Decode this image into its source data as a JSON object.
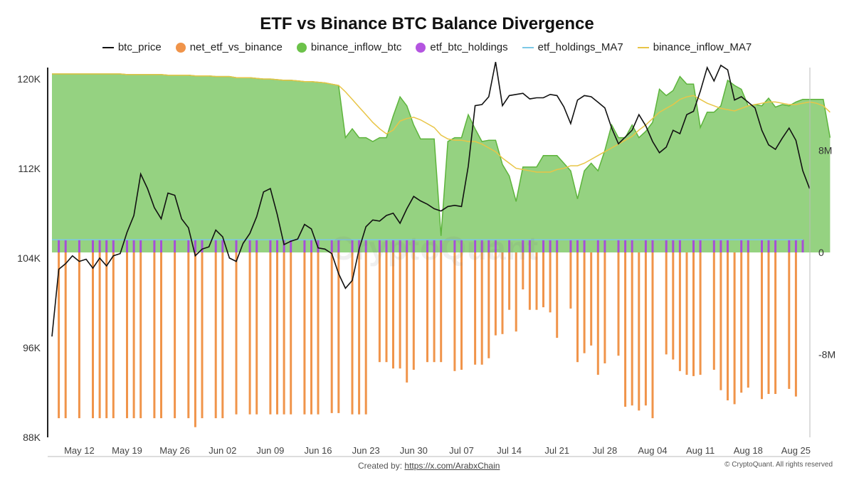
{
  "title": "ETF vs Binance BTC Balance Divergence",
  "legend": [
    {
      "label": "btc_price",
      "kind": "line",
      "color": "#111111"
    },
    {
      "label": "net_etf_vs_binance",
      "kind": "dot",
      "color": "#F0944A"
    },
    {
      "label": "binance_inflow_btc",
      "kind": "dot",
      "color": "#6CC24A"
    },
    {
      "label": "etf_btc_holdings",
      "kind": "dot",
      "color": "#B455E0"
    },
    {
      "label": "etf_holdings_MA7",
      "kind": "line",
      "color": "#7CC8E6"
    },
    {
      "label": "binance_inflow_MA7",
      "kind": "line",
      "color": "#E8C547"
    }
  ],
  "watermark": "CryptoQuant",
  "footer": {
    "created_label": "Created by:",
    "created_link": "https://x.com/ArabxChain",
    "copyright": "© CryptoQuant. All rights reserved"
  },
  "chart_data": {
    "type": "line",
    "x_start": "2025-05-08",
    "x_end": "2025-08-26",
    "xtick_labels": [
      "May 12",
      "May 19",
      "May 26",
      "Jun 02",
      "Jun 09",
      "Jun 16",
      "Jun 23",
      "Jun 30",
      "Jul 07",
      "Jul 14",
      "Jul 21",
      "Jul 28",
      "Aug 04",
      "Aug 11",
      "Aug 18",
      "Aug 25"
    ],
    "xtick_days": [
      4,
      11,
      18,
      25,
      32,
      39,
      46,
      53,
      60,
      67,
      74,
      81,
      88,
      95,
      102,
      109
    ],
    "left_axis": {
      "ticks": [
        88000,
        96000,
        104000,
        112000,
        120000
      ],
      "labels": [
        "88K",
        "96K",
        "104K",
        "112K",
        "120K"
      ],
      "range": [
        88000,
        121000
      ]
    },
    "right_axis": {
      "ticks": [
        -8000000,
        0,
        8000000
      ],
      "labels": [
        "-8M",
        "0",
        "8M"
      ],
      "range": [
        -14500000,
        14500000
      ]
    },
    "series": [
      {
        "name": "btc_price",
        "axis": "left",
        "color": "#111111",
        "values": [
          97000,
          103000,
          103500,
          104200,
          103700,
          103900,
          103100,
          104000,
          103300,
          104200,
          104400,
          106300,
          107800,
          111500,
          110200,
          108500,
          107500,
          109800,
          109600,
          107500,
          106700,
          104200,
          104800,
          105000,
          106500,
          105900,
          104000,
          103700,
          105300,
          106200,
          107700,
          109900,
          110200,
          107900,
          105200,
          105500,
          105700,
          107000,
          106600,
          104900,
          104800,
          104400,
          102600,
          101300,
          102000,
          104800,
          106800,
          107400,
          107300,
          107800,
          108000,
          107100,
          108400,
          109500,
          109100,
          108800,
          108400,
          108200,
          108600,
          108700,
          108600,
          112200,
          117600,
          117700,
          118400,
          121500,
          117600,
          118500,
          118600,
          118700,
          118200,
          118300,
          118300,
          118600,
          118500,
          117500,
          116000,
          118100,
          118500,
          118400,
          117900,
          117400,
          115600,
          114200,
          114800,
          115400,
          116800,
          115800,
          114400,
          113400,
          113900,
          115400,
          115100,
          116800,
          117100,
          118900,
          121000,
          119800,
          121200,
          120800,
          118100,
          118400,
          117900,
          117400,
          115400,
          114100,
          113700,
          114700,
          115600,
          114500,
          111800,
          110200
        ]
      },
      {
        "name": "binance_inflow_btc",
        "axis": "right",
        "color": "#6CC24A",
        "area": true,
        "values": [
          14000000,
          14000000,
          14000000,
          14000000,
          14000000,
          14000000,
          14000000,
          14000000,
          14000000,
          14000000,
          14000000,
          13950000,
          13950000,
          13950000,
          13950000,
          13950000,
          13950000,
          13900000,
          13900000,
          13900000,
          13900000,
          13850000,
          13850000,
          13850000,
          13800000,
          13800000,
          13800000,
          13700000,
          13700000,
          13700000,
          13650000,
          13600000,
          13600000,
          13550000,
          13500000,
          13500000,
          13450000,
          13400000,
          13400000,
          13350000,
          13300000,
          13200000,
          13100000,
          9000000,
          9700000,
          9000000,
          9000000,
          8700000,
          9000000,
          9000000,
          10700000,
          12200000,
          11500000,
          10000000,
          8900000,
          8900000,
          8900000,
          1300000,
          8700000,
          9000000,
          9000000,
          10800000,
          9700000,
          8700000,
          8800000,
          8800000,
          6900000,
          6000000,
          4000000,
          6700000,
          6700000,
          6700000,
          7600000,
          7600000,
          7600000,
          7000000,
          6400000,
          4200000,
          6400000,
          7000000,
          6400000,
          8000000,
          10000000,
          9000000,
          9000000,
          10000000,
          9000000,
          9500000,
          10200000,
          12800000,
          12300000,
          12700000,
          13800000,
          13200000,
          13200000,
          9800000,
          11000000,
          11000000,
          11500000,
          13500000,
          13100000,
          12800000,
          11500000,
          11600000,
          11500000,
          12100000,
          11400000,
          11600000,
          11500000,
          11800000,
          12000000,
          12000000,
          12000000,
          12000000,
          9000000
        ]
      },
      {
        "name": "etf_holdings_MA7",
        "axis": "right",
        "color": "#7CC8E6",
        "value": 1000000
      },
      {
        "name": "binance_inflow_MA7",
        "axis": "right",
        "color": "#E8C547",
        "values": [
          14000000,
          14000000,
          14000000,
          14000000,
          14000000,
          14000000,
          14000000,
          14000000,
          14000000,
          14000000,
          14000000,
          13950000,
          13950000,
          13950000,
          13950000,
          13950000,
          13950000,
          13900000,
          13900000,
          13900000,
          13900000,
          13850000,
          13850000,
          13850000,
          13800000,
          13800000,
          13800000,
          13700000,
          13700000,
          13700000,
          13650000,
          13600000,
          13600000,
          13550000,
          13500000,
          13500000,
          13450000,
          13400000,
          13400000,
          13350000,
          13300000,
          13200000,
          13100000,
          12600000,
          12000000,
          11400000,
          10800000,
          10200000,
          9700000,
          9300000,
          9600000,
          10300000,
          10500000,
          10600000,
          10400000,
          10100000,
          9800000,
          9200000,
          8900000,
          8800000,
          8800000,
          8700000,
          8700000,
          8500000,
          8200000,
          7900000,
          7400000,
          7000000,
          6600000,
          6500000,
          6400000,
          6300000,
          6300000,
          6300000,
          6500000,
          6600000,
          6800000,
          6800000,
          7000000,
          7300000,
          7600000,
          7900000,
          8200000,
          8500000,
          8800000,
          9100000,
          9600000,
          10000000,
          10500000,
          11000000,
          11300000,
          11600000,
          12000000,
          12200000,
          12300000,
          12000000,
          11700000,
          11500000,
          11300000,
          11200000,
          11100000,
          11300000,
          11500000,
          11600000,
          11700000,
          11800000,
          11800000,
          11700000,
          11600000,
          11600000,
          11700000,
          11800000,
          11700000,
          11500000,
          11000000
        ]
      },
      {
        "name": "etf_btc_holdings",
        "axis": "right",
        "color": "#B455E0",
        "days": [
          1,
          2,
          4,
          6,
          7,
          8,
          9,
          11,
          12,
          13,
          15,
          16,
          18,
          20,
          21,
          22,
          24,
          25,
          27,
          29,
          30,
          32,
          33,
          34,
          35,
          37,
          38,
          39,
          41,
          42,
          44,
          45,
          46,
          48,
          49,
          50,
          51,
          52,
          53,
          55,
          56,
          57,
          59,
          60,
          62,
          63,
          64,
          65,
          67,
          69,
          70,
          72,
          73,
          74,
          76,
          77,
          78,
          80,
          81,
          83,
          84,
          85,
          87,
          88,
          90,
          91,
          92,
          94,
          95,
          97,
          98,
          99,
          101,
          102,
          104,
          105,
          106,
          108,
          109,
          110
        ],
        "value": 1000000
      },
      {
        "name": "net_etf_vs_binance",
        "axis": "right",
        "color": "#F0944A",
        "days": [
          1,
          2,
          4,
          6,
          7,
          8,
          9,
          11,
          12,
          13,
          15,
          16,
          18,
          20,
          21,
          22,
          24,
          25,
          27,
          29,
          30,
          32,
          33,
          34,
          35,
          37,
          38,
          39,
          41,
          42,
          44,
          45,
          46,
          48,
          49,
          50,
          51,
          52,
          53,
          55,
          56,
          57,
          59,
          60,
          62,
          63,
          64,
          65,
          66,
          67,
          68,
          69,
          70,
          71,
          72,
          73,
          74,
          76,
          77,
          78,
          79,
          80,
          81,
          83,
          84,
          85,
          86,
          87,
          88,
          90,
          91,
          92,
          93,
          94,
          95,
          97,
          98,
          99,
          100,
          101,
          102,
          104,
          105,
          106,
          108,
          109
        ],
        "values": [
          -13000000,
          -13000000,
          -13000000,
          -13000000,
          -13000000,
          -13000000,
          -13000000,
          -13000000,
          -13000000,
          -13000000,
          -13000000,
          -13000000,
          -13000000,
          -13000000,
          -13700000,
          -13000000,
          -13000000,
          -13000000,
          -12700000,
          -12700000,
          -12700000,
          -12700000,
          -12700000,
          -12700000,
          -12700000,
          -12700000,
          -12700000,
          -12700000,
          -12600000,
          -12600000,
          -12700000,
          -12700000,
          -12700000,
          -8600000,
          -8600000,
          -9100000,
          -9100000,
          -10200000,
          -9200000,
          -8600000,
          -8600000,
          -8600000,
          -9300000,
          -9200000,
          -8800000,
          -8800000,
          -8300000,
          -6500000,
          -6400000,
          -4500000,
          -6200000,
          -2900000,
          -4500000,
          -4500000,
          -4300000,
          -4700000,
          -6700000,
          -4400000,
          -8600000,
          -7900000,
          -7300000,
          -9600000,
          -8700000,
          -8100000,
          -12100000,
          -12000000,
          -12400000,
          -12000000,
          -13000000,
          -8000000,
          -8400000,
          -9300000,
          -9600000,
          -9700000,
          -9600000,
          -9200000,
          -10800000,
          -11600000,
          -11900000,
          -11000000,
          -10600000,
          -11500000,
          -11100000,
          -11100000,
          -10700000,
          -11300000
        ]
      }
    ]
  }
}
